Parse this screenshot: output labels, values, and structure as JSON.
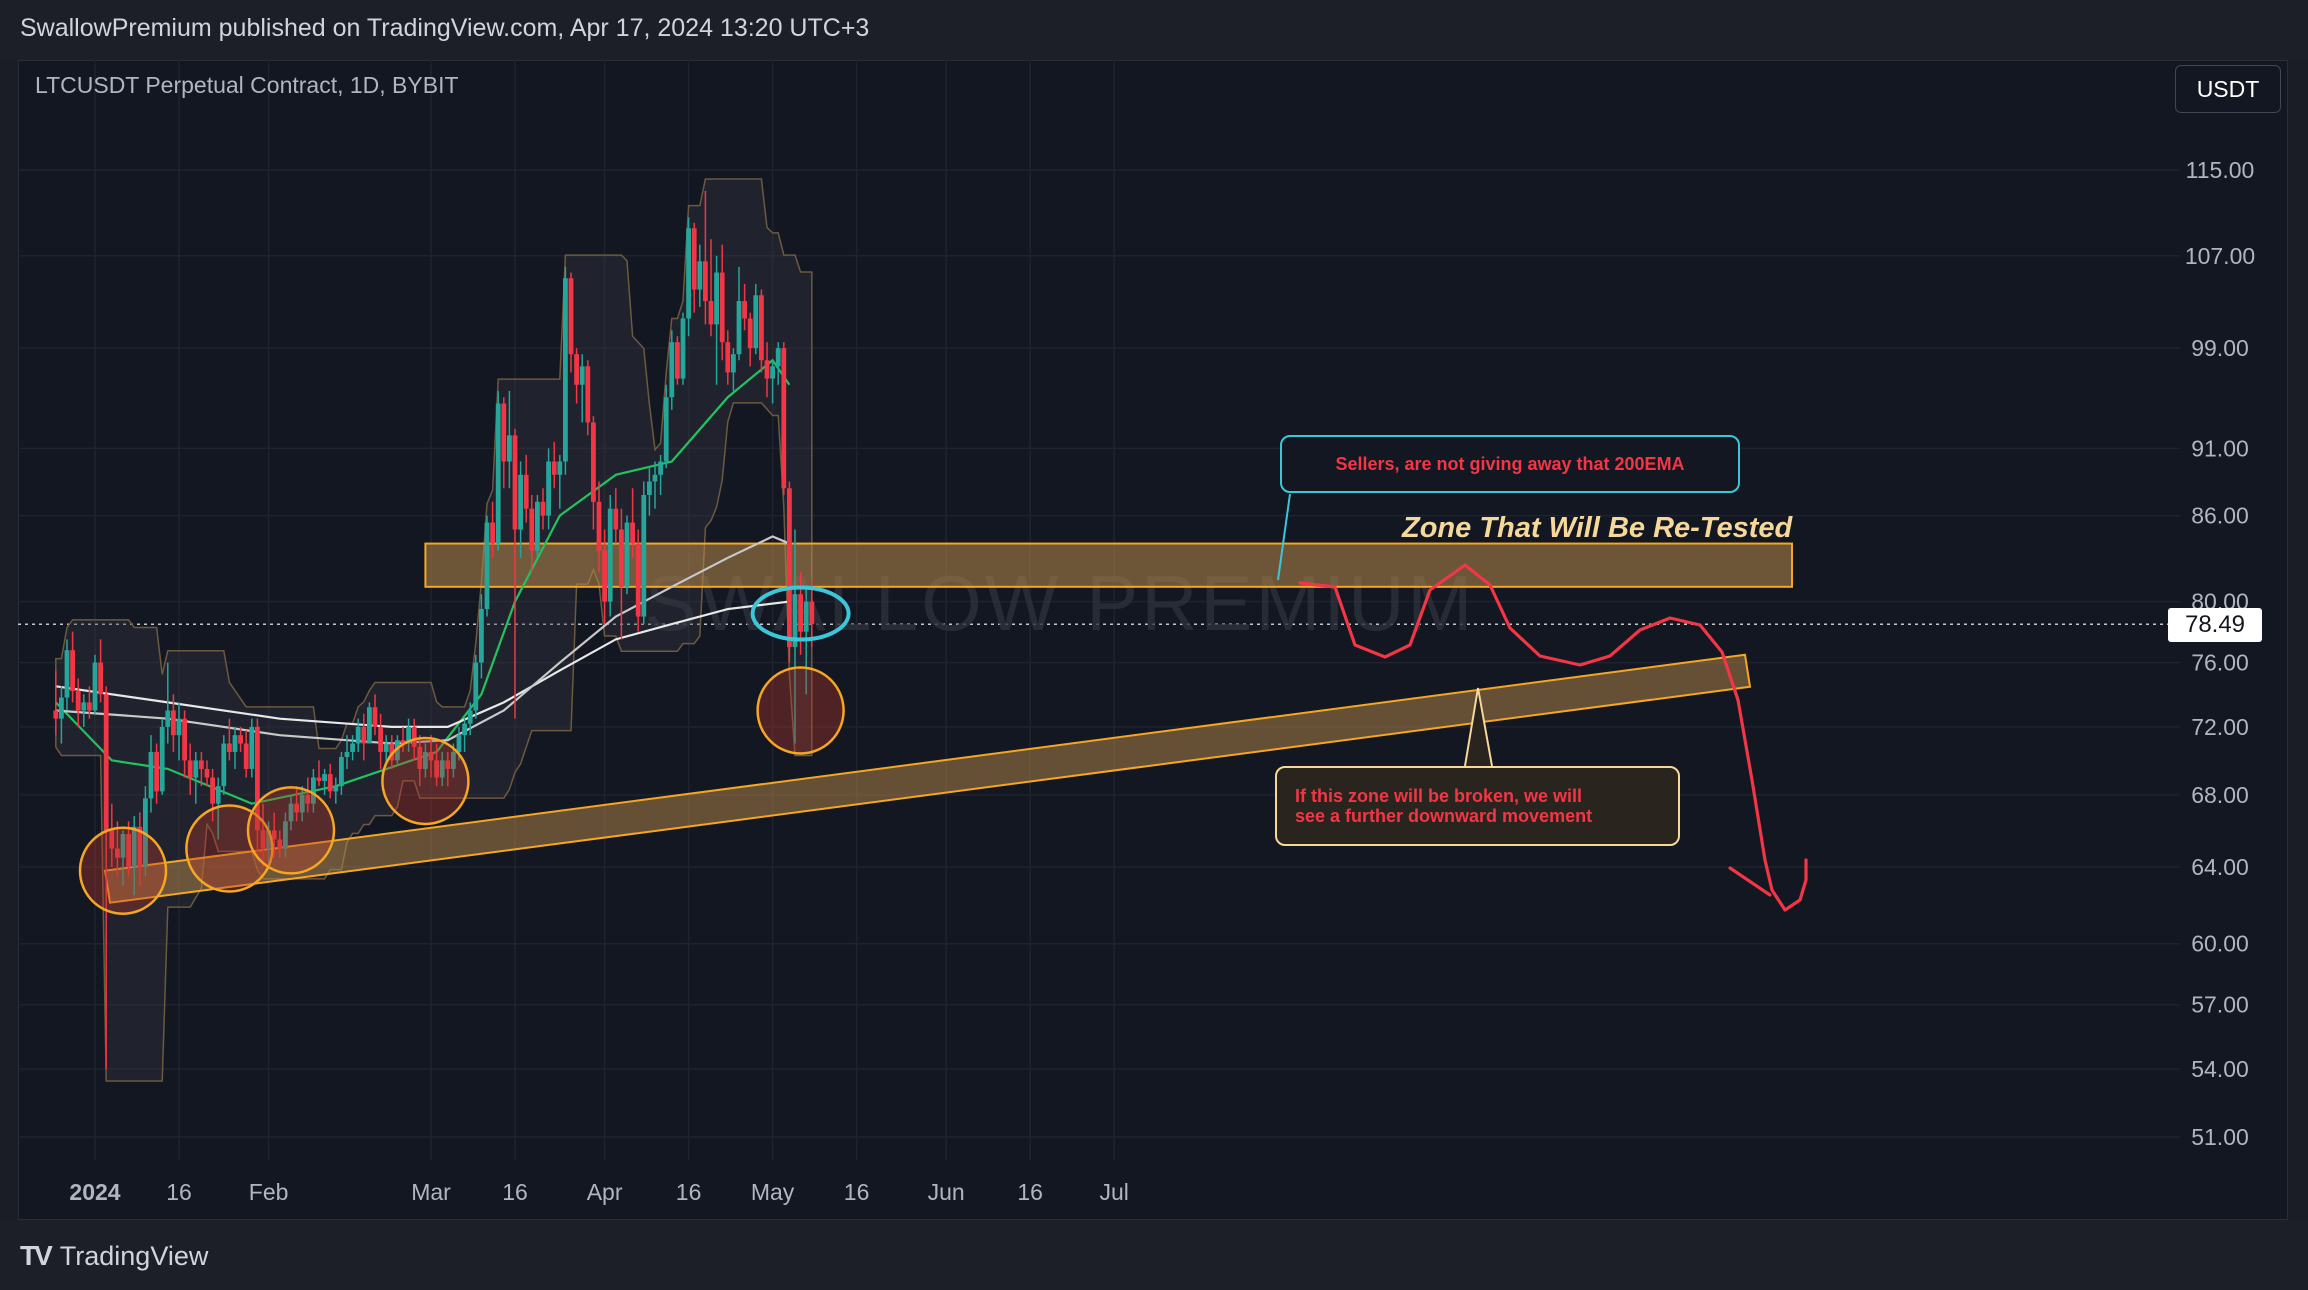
{
  "header": {
    "published_text": "SwallowPremium published on TradingView.com, Apr 17, 2024 13:20 UTC+3",
    "symbol_text": "LTCUSDT Perpetual Contract, 1D, BYBIT",
    "unit_label": "USDT"
  },
  "footer": {
    "brand": "TradingView",
    "brand_mark": "TV"
  },
  "watermark": "SWALLOW PREMIUM",
  "annotations": {
    "zone_title": "Zone That Will Be Re-Tested",
    "note_sellers": "Sellers, are not giving away that 200EMA",
    "note_break_line1": "If this zone will be broken, we will",
    "note_break_line2": "see a further downward movement"
  },
  "colors": {
    "background": "#131722",
    "bull": "#26a69a",
    "bear": "#f23645",
    "zone_fill": "#b8894a",
    "zone_border": "#f5a623",
    "ema_fast": "#22c35e",
    "ema_white": "#e8e8e8",
    "projection": "#f23645",
    "highlight_circle": "#3cc6d8"
  },
  "chart_data": {
    "type": "candlestick",
    "title": "LTCUSDT Perpetual Contract, 1D, BYBIT",
    "y_scale": "log",
    "y_ticks": [
      51.0,
      54.0,
      57.0,
      60.0,
      64.0,
      68.0,
      72.0,
      76.0,
      80.0,
      86.0,
      91.0,
      99.0,
      107.0,
      115.0
    ],
    "x_ticks": [
      {
        "date": "2024-01-01",
        "label": "2024",
        "bold": true
      },
      {
        "date": "2024-01-16",
        "label": "16"
      },
      {
        "date": "2024-02-01",
        "label": "Feb"
      },
      {
        "date": "2024-03-01",
        "label": "Mar"
      },
      {
        "date": "2024-03-16",
        "label": "16"
      },
      {
        "date": "2024-04-01",
        "label": "Apr"
      },
      {
        "date": "2024-04-16",
        "label": "16"
      },
      {
        "date": "2024-05-01",
        "label": "May"
      },
      {
        "date": "2024-05-16",
        "label": "16"
      },
      {
        "date": "2024-06-01",
        "label": "Jun"
      },
      {
        "date": "2024-06-16",
        "label": "16"
      },
      {
        "date": "2024-07-01",
        "label": "Jul"
      }
    ],
    "last_price": 78.49,
    "candles_ohlc": [
      [
        "2023-12-25",
        73.0,
        75.5,
        71.5,
        72.5
      ],
      [
        "2023-12-26",
        72.5,
        74.5,
        71.0,
        73.8
      ],
      [
        "2023-12-27",
        73.8,
        77.5,
        73.0,
        76.8
      ],
      [
        "2023-12-28",
        76.8,
        78.0,
        73.5,
        74.2
      ],
      [
        "2023-12-29",
        74.2,
        75.0,
        72.0,
        73.0
      ],
      [
        "2023-12-30",
        73.0,
        74.0,
        72.0,
        73.5
      ],
      [
        "2023-12-31",
        73.5,
        74.5,
        72.5,
        73.0
      ],
      [
        "2024-01-01",
        73.0,
        76.5,
        72.8,
        76.0
      ],
      [
        "2024-01-02",
        76.0,
        77.5,
        73.5,
        74.0
      ],
      [
        "2024-01-03",
        74.0,
        74.5,
        54.0,
        66.0
      ],
      [
        "2024-01-04",
        66.0,
        67.5,
        64.0,
        65.0
      ],
      [
        "2024-01-05",
        65.0,
        66.5,
        63.5,
        64.5
      ],
      [
        "2024-01-06",
        64.5,
        66.0,
        63.0,
        65.8
      ],
      [
        "2024-01-07",
        65.8,
        66.5,
        63.5,
        64.0
      ],
      [
        "2024-01-08",
        64.0,
        66.8,
        62.5,
        66.2
      ],
      [
        "2024-01-09",
        66.2,
        67.0,
        63.0,
        64.0
      ],
      [
        "2024-01-10",
        64.0,
        68.5,
        63.5,
        67.8
      ],
      [
        "2024-01-11",
        67.8,
        71.5,
        67.0,
        70.5
      ],
      [
        "2024-01-12",
        70.5,
        71.0,
        67.5,
        68.2
      ],
      [
        "2024-01-13",
        68.2,
        72.5,
        68.0,
        72.0
      ],
      [
        "2024-01-14",
        72.0,
        76.0,
        71.0,
        73.0
      ],
      [
        "2024-01-15",
        73.0,
        74.0,
        70.5,
        71.5
      ],
      [
        "2024-01-16",
        71.5,
        73.5,
        70.0,
        72.5
      ],
      [
        "2024-01-17",
        72.5,
        73.0,
        69.0,
        70.0
      ],
      [
        "2024-01-18",
        70.0,
        71.0,
        68.0,
        69.0
      ],
      [
        "2024-01-19",
        69.0,
        70.5,
        67.5,
        70.0
      ],
      [
        "2024-01-20",
        70.0,
        70.5,
        68.5,
        69.5
      ],
      [
        "2024-01-21",
        69.5,
        70.0,
        68.5,
        69.0
      ],
      [
        "2024-01-22",
        69.0,
        69.5,
        66.5,
        67.5
      ],
      [
        "2024-01-23",
        67.5,
        69.0,
        65.5,
        68.5
      ],
      [
        "2024-01-24",
        68.5,
        71.5,
        68.0,
        71.0
      ],
      [
        "2024-01-25",
        71.0,
        72.5,
        70.0,
        70.5
      ],
      [
        "2024-01-26",
        70.5,
        72.0,
        69.5,
        71.5
      ],
      [
        "2024-01-27",
        71.5,
        72.0,
        70.5,
        71.0
      ],
      [
        "2024-01-28",
        71.0,
        71.8,
        69.0,
        69.5
      ],
      [
        "2024-01-29",
        69.5,
        72.5,
        69.0,
        72.0
      ],
      [
        "2024-01-30",
        72.0,
        72.5,
        64.5,
        66.0
      ],
      [
        "2024-01-31",
        66.0,
        67.5,
        64.0,
        65.0
      ],
      [
        "2024-02-01",
        65.0,
        66.5,
        64.0,
        66.0
      ],
      [
        "2024-02-02",
        66.0,
        67.0,
        64.5,
        65.5
      ],
      [
        "2024-02-03",
        65.5,
        66.0,
        64.5,
        65.0
      ],
      [
        "2024-02-04",
        65.0,
        67.0,
        64.5,
        66.5
      ],
      [
        "2024-02-05",
        66.5,
        68.0,
        66.0,
        67.5
      ],
      [
        "2024-02-06",
        67.5,
        68.5,
        66.5,
        67.0
      ],
      [
        "2024-02-07",
        67.0,
        68.5,
        66.5,
        68.0
      ],
      [
        "2024-02-08",
        68.0,
        69.0,
        67.0,
        67.5
      ],
      [
        "2024-02-09",
        67.5,
        69.5,
        67.0,
        69.0
      ],
      [
        "2024-02-10",
        69.0,
        70.0,
        68.5,
        68.8
      ],
      [
        "2024-02-11",
        68.8,
        69.5,
        68.0,
        69.2
      ],
      [
        "2024-02-12",
        69.2,
        69.8,
        67.8,
        68.2
      ],
      [
        "2024-02-13",
        68.2,
        69.0,
        67.5,
        68.5
      ],
      [
        "2024-02-14",
        68.5,
        70.5,
        68.0,
        70.2
      ],
      [
        "2024-02-15",
        70.2,
        71.5,
        69.5,
        70.5
      ],
      [
        "2024-02-16",
        70.5,
        71.5,
        70.0,
        71.0
      ],
      [
        "2024-02-17",
        71.0,
        72.5,
        70.5,
        72.0
      ],
      [
        "2024-02-18",
        72.0,
        72.8,
        70.0,
        71.0
      ],
      [
        "2024-02-19",
        71.0,
        73.5,
        71.0,
        73.2
      ],
      [
        "2024-02-20",
        73.2,
        74.0,
        71.5,
        72.0
      ],
      [
        "2024-02-21",
        72.0,
        72.8,
        69.5,
        70.5
      ],
      [
        "2024-02-22",
        70.5,
        71.5,
        69.8,
        71.0
      ],
      [
        "2024-02-23",
        71.0,
        71.5,
        69.5,
        70.0
      ],
      [
        "2024-02-24",
        70.0,
        71.5,
        69.8,
        71.2
      ],
      [
        "2024-02-25",
        71.2,
        72.0,
        70.5,
        71.0
      ],
      [
        "2024-02-26",
        71.0,
        72.5,
        70.5,
        72.0
      ],
      [
        "2024-02-27",
        72.0,
        72.5,
        70.0,
        70.8
      ],
      [
        "2024-02-28",
        70.8,
        71.5,
        68.5,
        69.5
      ],
      [
        "2024-02-29",
        69.5,
        71.0,
        69.0,
        70.5
      ],
      [
        "2024-03-01",
        70.5,
        71.5,
        69.0,
        70.0
      ],
      [
        "2024-03-02",
        70.0,
        71.0,
        68.5,
        69.0
      ],
      [
        "2024-03-03",
        69.0,
        70.5,
        68.5,
        70.0
      ],
      [
        "2024-03-04",
        70.0,
        70.5,
        68.5,
        69.5
      ],
      [
        "2024-03-05",
        69.5,
        71.0,
        69.0,
        70.5
      ],
      [
        "2024-03-06",
        70.5,
        72.0,
        70.0,
        71.5
      ],
      [
        "2024-03-07",
        71.5,
        72.5,
        70.5,
        72.2
      ],
      [
        "2024-03-08",
        72.2,
        73.5,
        71.5,
        73.0
      ],
      [
        "2024-03-09",
        73.0,
        76.5,
        72.5,
        76.0
      ],
      [
        "2024-03-10",
        76.0,
        80.5,
        75.0,
        79.5
      ],
      [
        "2024-03-11",
        79.5,
        86.0,
        79.0,
        85.5
      ],
      [
        "2024-03-12",
        85.5,
        87.0,
        83.0,
        84.0
      ],
      [
        "2024-03-13",
        84.0,
        95.5,
        83.5,
        94.5
      ],
      [
        "2024-03-14",
        94.5,
        95.0,
        88.0,
        90.0
      ],
      [
        "2024-03-15",
        90.0,
        95.5,
        88.0,
        92.0
      ],
      [
        "2024-03-16",
        92.0,
        92.5,
        72.5,
        85.0
      ],
      [
        "2024-03-17",
        85.0,
        90.0,
        83.0,
        89.0
      ],
      [
        "2024-03-18",
        89.0,
        90.5,
        85.5,
        86.5
      ],
      [
        "2024-03-19",
        86.5,
        87.5,
        82.0,
        83.5
      ],
      [
        "2024-03-20",
        83.5,
        87.5,
        83.0,
        87.0
      ],
      [
        "2024-03-21",
        87.0,
        88.0,
        85.0,
        86.0
      ],
      [
        "2024-03-22",
        86.0,
        91.0,
        85.0,
        90.0
      ],
      [
        "2024-03-23",
        90.0,
        91.5,
        88.0,
        89.0
      ],
      [
        "2024-03-24",
        89.0,
        90.5,
        86.5,
        90.0
      ],
      [
        "2024-03-25",
        90.0,
        106.0,
        89.0,
        105.0
      ],
      [
        "2024-03-26",
        105.0,
        105.5,
        97.0,
        98.5
      ],
      [
        "2024-03-27",
        98.5,
        99.0,
        94.5,
        96.0
      ],
      [
        "2024-03-28",
        96.0,
        98.5,
        93.0,
        97.5
      ],
      [
        "2024-03-29",
        97.5,
        98.0,
        92.0,
        93.0
      ],
      [
        "2024-03-30",
        93.0,
        93.5,
        85.0,
        87.0
      ],
      [
        "2024-03-31",
        87.0,
        88.5,
        82.0,
        83.5
      ],
      [
        "2024-04-01",
        83.5,
        85.0,
        78.5,
        80.0
      ],
      [
        "2024-04-02",
        80.0,
        87.5,
        79.0,
        86.5
      ],
      [
        "2024-04-03",
        86.5,
        88.0,
        84.0,
        85.0
      ],
      [
        "2024-04-04",
        85.0,
        86.5,
        77.5,
        81.0
      ],
      [
        "2024-04-05",
        81.0,
        86.0,
        80.5,
        85.5
      ],
      [
        "2024-04-06",
        85.5,
        88.0,
        83.0,
        84.0
      ],
      [
        "2024-04-07",
        84.0,
        85.0,
        78.0,
        79.0
      ],
      [
        "2024-04-08",
        79.0,
        88.5,
        78.5,
        87.5
      ],
      [
        "2024-04-09",
        87.5,
        89.5,
        86.0,
        88.5
      ],
      [
        "2024-04-10",
        88.5,
        90.0,
        86.5,
        89.0
      ],
      [
        "2024-04-11",
        89.0,
        90.5,
        87.5,
        90.0
      ],
      [
        "2024-04-12",
        90.0,
        96.0,
        89.5,
        95.0
      ],
      [
        "2024-04-13",
        95.0,
        100.5,
        94.0,
        99.5
      ],
      [
        "2024-04-14",
        99.5,
        100.0,
        96.0,
        96.5
      ],
      [
        "2024-04-15",
        96.5,
        102.0,
        96.0,
        101.5
      ],
      [
        "2024-04-16",
        101.5,
        110.5,
        100.0,
        109.5
      ],
      [
        "2024-04-17",
        109.5,
        110.0,
        102.0,
        104.0
      ],
      [
        "2024-04-18",
        104.0,
        108.0,
        102.5,
        106.5
      ],
      [
        "2024-04-19",
        106.5,
        113.0,
        101.0,
        103.0
      ],
      [
        "2024-04-20",
        103.0,
        108.5,
        100.0,
        101.0
      ],
      [
        "2024-04-21",
        101.0,
        107.0,
        96.0,
        105.5
      ],
      [
        "2024-04-22",
        105.5,
        108.0,
        98.0,
        99.5
      ],
      [
        "2024-04-23",
        99.5,
        100.5,
        96.0,
        97.0
      ],
      [
        "2024-04-24",
        97.0,
        99.0,
        95.5,
        98.5
      ],
      [
        "2024-04-25",
        98.5,
        106.0,
        98.0,
        103.0
      ],
      [
        "2024-04-26",
        103.0,
        104.5,
        100.5,
        101.5
      ],
      [
        "2024-04-27",
        101.5,
        102.0,
        97.5,
        99.0
      ],
      [
        "2024-04-28",
        99.0,
        104.5,
        98.5,
        103.5
      ],
      [
        "2024-04-29",
        103.5,
        104.0,
        97.0,
        98.0
      ],
      [
        "2024-04-30",
        98.0,
        99.5,
        95.0,
        96.5
      ],
      [
        "2024-05-01",
        96.5,
        98.0,
        94.5,
        97.5
      ],
      [
        "2024-05-02",
        97.5,
        99.5,
        96.0,
        99.0
      ],
      [
        "2024-05-03",
        99.0,
        99.5,
        87.5,
        88.0
      ],
      [
        "2024-05-04",
        88.0,
        88.5,
        76.0,
        77.0
      ],
      [
        "2024-05-05",
        77.0,
        85.0,
        71.0,
        80.5
      ],
      [
        "2024-05-06",
        80.5,
        82.0,
        76.5,
        78.0
      ],
      [
        "2024-05-07",
        78.0,
        81.0,
        74.0,
        80.0
      ],
      [
        "2024-05-08",
        80.0,
        81.5,
        77.0,
        78.49
      ]
    ],
    "series": [
      {
        "name": "",
        "color": "#22c35e",
        "values": [
          [
            0,
            73.5
          ],
          [
            10,
            70
          ],
          [
            20,
            69.5
          ],
          [
            35,
            67.5
          ],
          [
            50,
            68.5
          ],
          [
            68,
            70.5
          ],
          [
            76,
            74
          ],
          [
            82,
            80
          ],
          [
            90,
            86
          ],
          [
            100,
            89
          ],
          [
            110,
            90
          ],
          [
            120,
            95
          ],
          [
            128,
            98
          ],
          [
            131,
            96
          ]
        ]
      },
      {
        "name": "",
        "color": "#e8e8e8",
        "values": [
          [
            0,
            74.5
          ],
          [
            20,
            73.5
          ],
          [
            40,
            72.5
          ],
          [
            60,
            72.0
          ],
          [
            70,
            72.0
          ],
          [
            80,
            73.5
          ],
          [
            90,
            75.5
          ],
          [
            100,
            77.5
          ],
          [
            110,
            78.5
          ],
          [
            120,
            79.5
          ],
          [
            131,
            80
          ]
        ]
      },
      {
        "name": "",
        "color": "#c9c9c9",
        "values": [
          [
            0,
            73.0
          ],
          [
            20,
            72.5
          ],
          [
            40,
            71.5
          ],
          [
            60,
            71.0
          ],
          [
            70,
            71.2
          ],
          [
            80,
            73
          ],
          [
            90,
            76
          ],
          [
            100,
            79
          ],
          [
            110,
            81
          ],
          [
            120,
            83
          ],
          [
            128,
            84.5
          ],
          [
            131,
            84
          ]
        ]
      }
    ]
  }
}
